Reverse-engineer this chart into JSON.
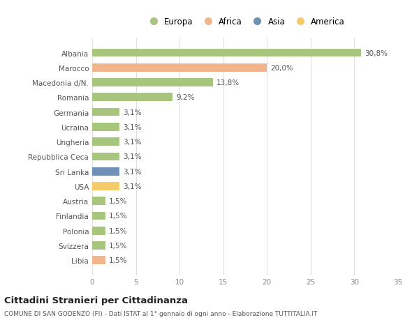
{
  "countries": [
    "Albania",
    "Marocco",
    "Macedonia d/N.",
    "Romania",
    "Germania",
    "Ucraina",
    "Ungheria",
    "Repubblica Ceca",
    "Sri Lanka",
    "USA",
    "Austria",
    "Finlandia",
    "Polonia",
    "Svizzera",
    "Libia"
  ],
  "values": [
    30.8,
    20.0,
    13.8,
    9.2,
    3.1,
    3.1,
    3.1,
    3.1,
    3.1,
    3.1,
    1.5,
    1.5,
    1.5,
    1.5,
    1.5
  ],
  "labels": [
    "30,8%",
    "20,0%",
    "13,8%",
    "9,2%",
    "3,1%",
    "3,1%",
    "3,1%",
    "3,1%",
    "3,1%",
    "3,1%",
    "1,5%",
    "1,5%",
    "1,5%",
    "1,5%",
    "1,5%"
  ],
  "colors": [
    "#a8c57d",
    "#f2b48a",
    "#a8c57d",
    "#a8c57d",
    "#a8c57d",
    "#a8c57d",
    "#a8c57d",
    "#a8c57d",
    "#7090b8",
    "#f5cb6a",
    "#a8c57d",
    "#a8c57d",
    "#a8c57d",
    "#a8c57d",
    "#f2b48a"
  ],
  "legend_labels": [
    "Europa",
    "Africa",
    "Asia",
    "America"
  ],
  "legend_colors": [
    "#a8c57d",
    "#f2b48a",
    "#7090b8",
    "#f5cb6a"
  ],
  "title": "Cittadini Stranieri per Cittadinanza",
  "subtitle": "COMUNE DI SAN GODENZO (FI) - Dati ISTAT al 1° gennaio di ogni anno - Elaborazione TUTTITALIA.IT",
  "xlim": [
    0,
    35
  ],
  "xticks": [
    0,
    5,
    10,
    15,
    20,
    25,
    30,
    35
  ],
  "bg_color": "#ffffff",
  "grid_color": "#e0e0e0",
  "bar_height": 0.55
}
